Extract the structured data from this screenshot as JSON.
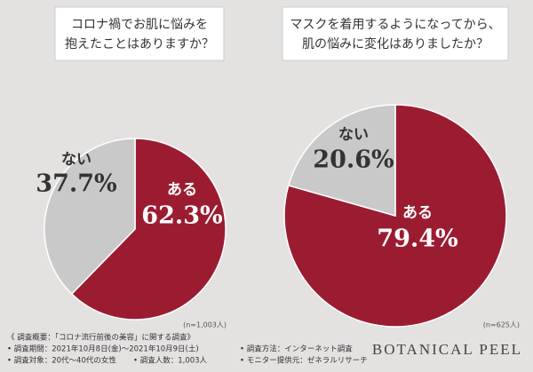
{
  "chart_data": [
    {
      "type": "pie",
      "title": [
        "コロナ禍でお肌に悩みを",
        "抱えたことはありますか？"
      ],
      "categories": [
        "ある",
        "ない"
      ],
      "values": [
        62.3,
        37.7
      ],
      "value_labels": [
        "62.3%",
        "37.7%"
      ],
      "colors": [
        "#9b1c31",
        "#c9c9c9"
      ],
      "note": "(n=1,003人)"
    },
    {
      "type": "pie",
      "title": [
        "マスクを着用するようになってから、",
        "肌の悩みに変化はありましたか？"
      ],
      "categories": [
        "ある",
        "ない"
      ],
      "values": [
        79.4,
        20.6
      ],
      "value_labels": [
        "79.4%",
        "20.6%"
      ],
      "colors": [
        "#9b1c31",
        "#c9c9c9"
      ],
      "note": "(n=625人)"
    }
  ],
  "survey": {
    "heading": "《 調査概要：「コロナ流行前後の美容」に関する調査》",
    "items": [
      "• 調査期間：2021年10月8日(金)～2021年10月9日(土)",
      "• 調査対象：20代～40代の女性",
      "• 調査人数：1,003人",
      "• 調査方法：インターネット調査",
      "• モニター提供元：ゼネラルリサーチ"
    ],
    "brand": "BOTANICAL PEEL"
  }
}
